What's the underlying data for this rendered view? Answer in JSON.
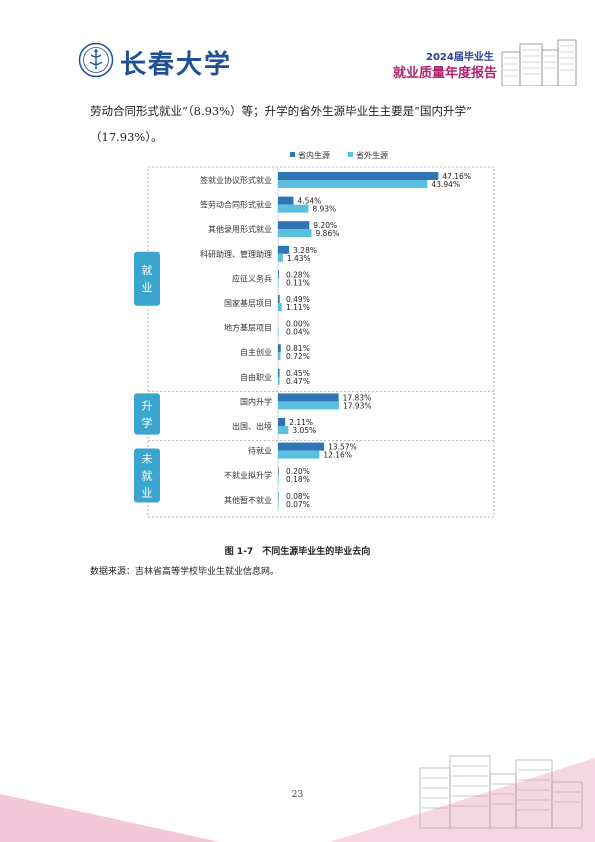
{
  "header": {
    "logo_text": "长春大学",
    "report_year": "2024届毕业生",
    "report_title": "就业质量年度报告"
  },
  "paragraph": {
    "line1": "劳动合同形式就业”（8.93%）等；升学的省外生源毕业生主要是“国内升学”",
    "line2": "（17.93%）。"
  },
  "chart_data": {
    "type": "bar",
    "orientation": "horizontal",
    "legend": {
      "position": "top",
      "entries": [
        "省内生源",
        "省外生源"
      ]
    },
    "colors": {
      "series1": "#2e75b6",
      "series2": "#5bc0de"
    },
    "groups": [
      {
        "label": "就业",
        "start": 0,
        "end": 9
      },
      {
        "label": "升学",
        "start": 9,
        "end": 11
      },
      {
        "label": "未就业",
        "start": 11,
        "end": 14
      }
    ],
    "categories": [
      "签就业协议形式就业",
      "签劳动合同形式就业",
      "其他录用形式就业",
      "科研助理、管理助理",
      "应征义务兵",
      "国家基层项目",
      "地方基层项目",
      "自主创业",
      "自由职业",
      "国内升学",
      "出国、出境",
      "待就业",
      "不就业拟升学",
      "其他暂不就业"
    ],
    "series": [
      {
        "name": "省内生源",
        "values": [
          47.16,
          4.54,
          9.2,
          3.28,
          0.28,
          0.49,
          0.0,
          0.81,
          0.45,
          17.83,
          2.11,
          13.57,
          0.2,
          0.08
        ]
      },
      {
        "name": "省外生源",
        "values": [
          43.94,
          8.93,
          9.86,
          1.43,
          0.11,
          1.11,
          0.04,
          0.72,
          0.47,
          17.93,
          3.05,
          12.16,
          0.18,
          0.07
        ]
      }
    ],
    "labels1": [
      "47.16%",
      "4.54%",
      "9.20%",
      "3.28%",
      "0.28%",
      "0.49%",
      "0.00%",
      "0.81%",
      "0.45%",
      "17.83%",
      "2.11%",
      "13.57%",
      "0.20%",
      "0.08%"
    ],
    "labels2": [
      "43.94%",
      "8.93%",
      "9.86%",
      "1.43%",
      "0.11%",
      "1.11%",
      "0.04%",
      "0.72%",
      "0.47%",
      "17.93%",
      "3.05%",
      "12.16%",
      "0.18%",
      "0.07%"
    ],
    "xlim": [
      0,
      50
    ]
  },
  "caption": "图 1-7　不同生源毕业生的毕业去向",
  "source": "数据来源：吉林省高等学校毕业生就业信息网。",
  "page_number": "23"
}
